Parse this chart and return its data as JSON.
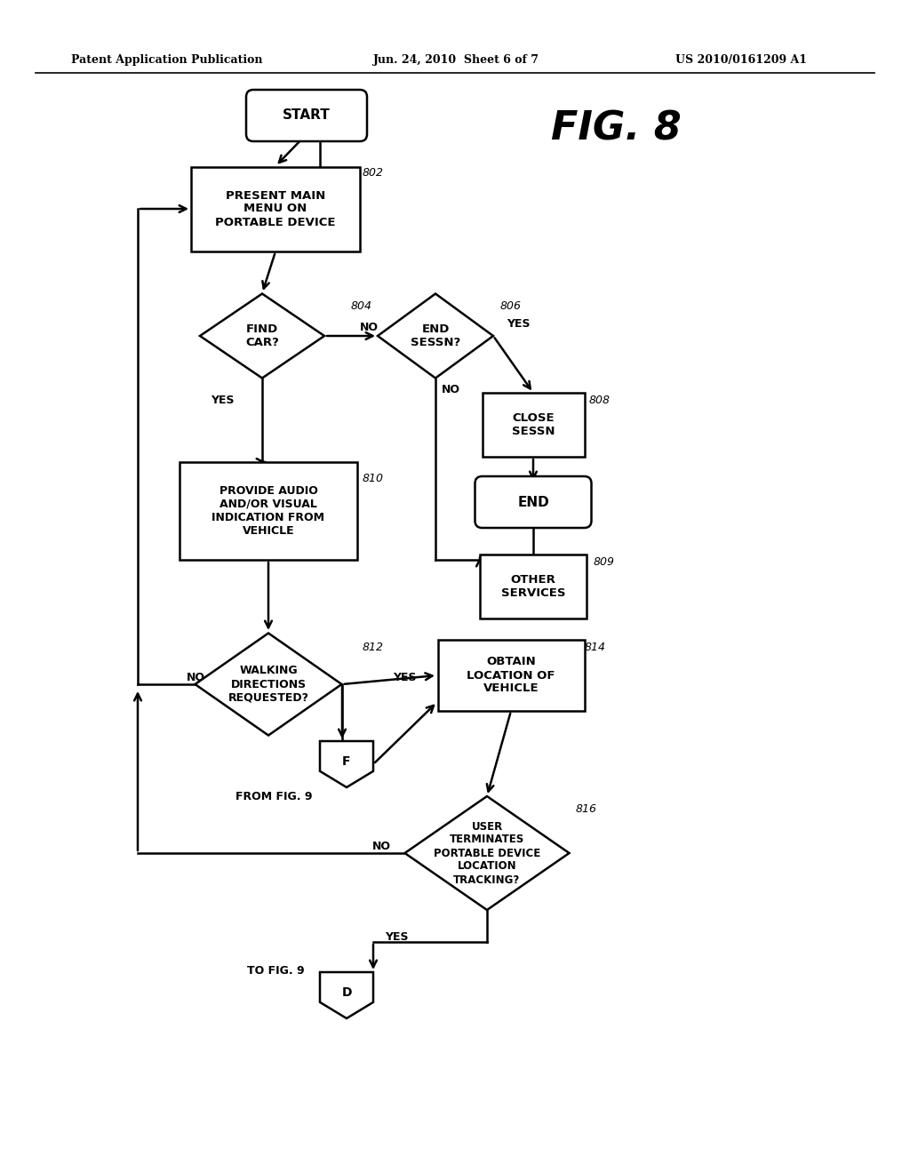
{
  "bg_color": "#ffffff",
  "header_left": "Patent Application Publication",
  "header_center": "Jun. 24, 2010  Sheet 6 of 7",
  "header_right": "US 2010/0161209 A1",
  "fig_label": "FIG. 8"
}
